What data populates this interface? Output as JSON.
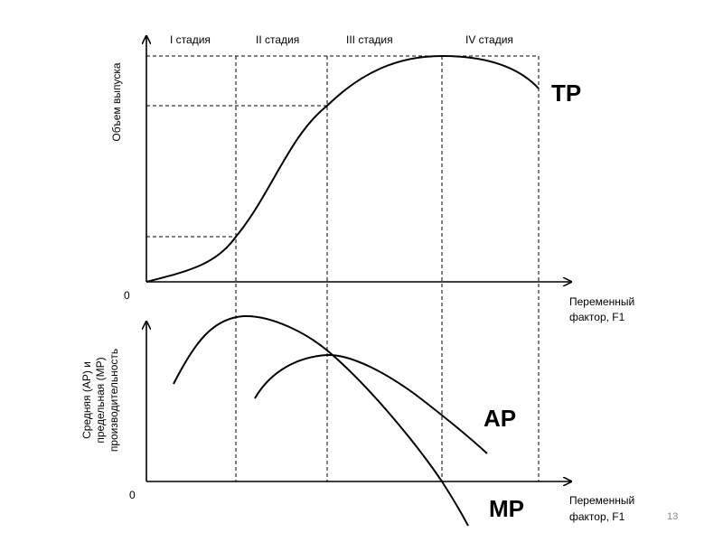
{
  "stages": [
    "I стадия",
    "II стадия",
    "III стадия",
    "IV стадия"
  ],
  "top_chart": {
    "y_axis_label": "Объем выпуска",
    "origin_label": "0",
    "x_axis_label_line1": "Переменный",
    "x_axis_label_line2": "фактор, F1",
    "curve_label": "TP"
  },
  "bottom_chart": {
    "y_axis_label_line1": "Средняя (АР) и",
    "y_axis_label_line2": "предельная (МР)",
    "y_axis_label_line3": "производительность",
    "origin_label": "0",
    "x_axis_label_line1": "Переменный",
    "x_axis_label_line2": "фактор, F1",
    "ap_label": "AP",
    "mp_label": "MP"
  },
  "page_number": "13"
}
